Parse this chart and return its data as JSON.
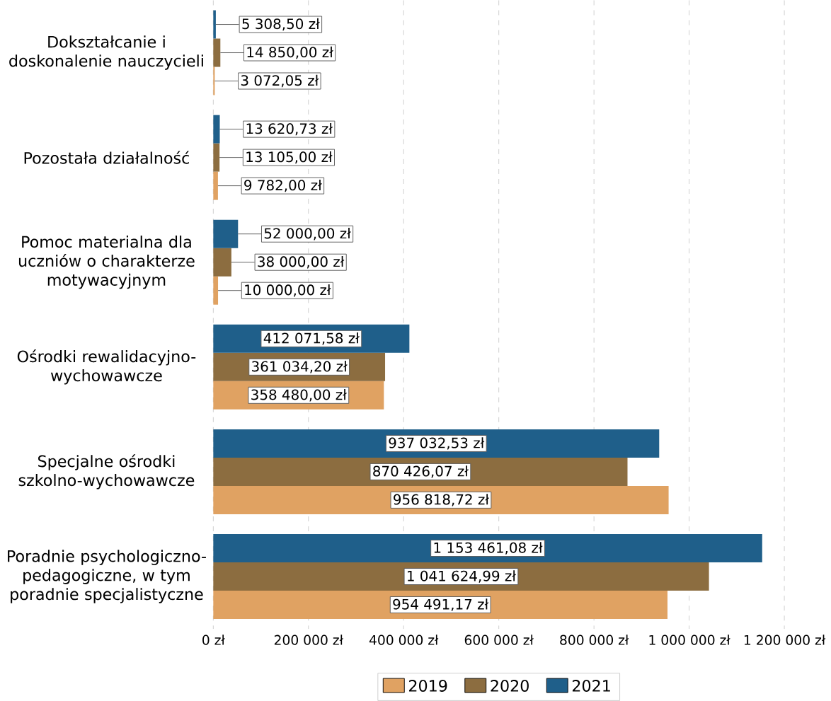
{
  "chart_data": {
    "type": "bar",
    "orientation": "horizontal",
    "categories": [
      "Dokształcanie i doskonalenie nauczycieli",
      "Pozostała działalność",
      "Pomoc materialna dla uczniów o charakterze motywacyjnym",
      "Ośrodki rewalidacyjno-wychowawcze",
      "Specjalne ośrodki szkolno-wychowawcze",
      "Poradnie psychologiczno-pedagogiczne, w tym poradnie specjalistyczne"
    ],
    "series": [
      {
        "name": "2019",
        "color": "#e0a262",
        "values": [
          3072.05,
          9782.0,
          10000.0,
          358480.0,
          956818.72,
          954491.17
        ],
        "value_labels": [
          "3 072,05 zł",
          "9 782,00 zł",
          "10 000,00 zł",
          "358 480,00 zł",
          "956 818,72 zł",
          "954 491,17 zł"
        ]
      },
      {
        "name": "2020",
        "color": "#8c6d40",
        "values": [
          14850.0,
          13105.0,
          38000.0,
          361034.2,
          870426.07,
          1041624.99
        ],
        "value_labels": [
          "14 850,00 zł",
          "13 105,00 zł",
          "38 000,00 zł",
          "361 034,20 zł",
          "870 426,07 zł",
          "1 041 624,99 zł"
        ]
      },
      {
        "name": "2021",
        "color": "#1f5f8a",
        "values": [
          5308.5,
          13620.73,
          52000.0,
          412071.58,
          937032.53,
          1153461.08
        ],
        "value_labels": [
          "5 308,50 zł",
          "13 620,73 zł",
          "52 000,00 zł",
          "412 071,58 zł",
          "937 032,53 zł",
          "1 153 461,08 zł"
        ]
      }
    ],
    "xlim": [
      0,
      1200000
    ],
    "xticks": [
      {
        "value": 0,
        "label": "0 zł"
      },
      {
        "value": 200000,
        "label": "200 000 zł"
      },
      {
        "value": 400000,
        "label": "400 000 zł"
      },
      {
        "value": 600000,
        "label": "600 000 zł"
      },
      {
        "value": 800000,
        "label": "800 000 zł"
      },
      {
        "value": 1000000,
        "label": "1 000 000 zł"
      },
      {
        "value": 1200000,
        "label": "1 200 000 zł"
      }
    ],
    "grid": "x",
    "legend": "bottom"
  }
}
